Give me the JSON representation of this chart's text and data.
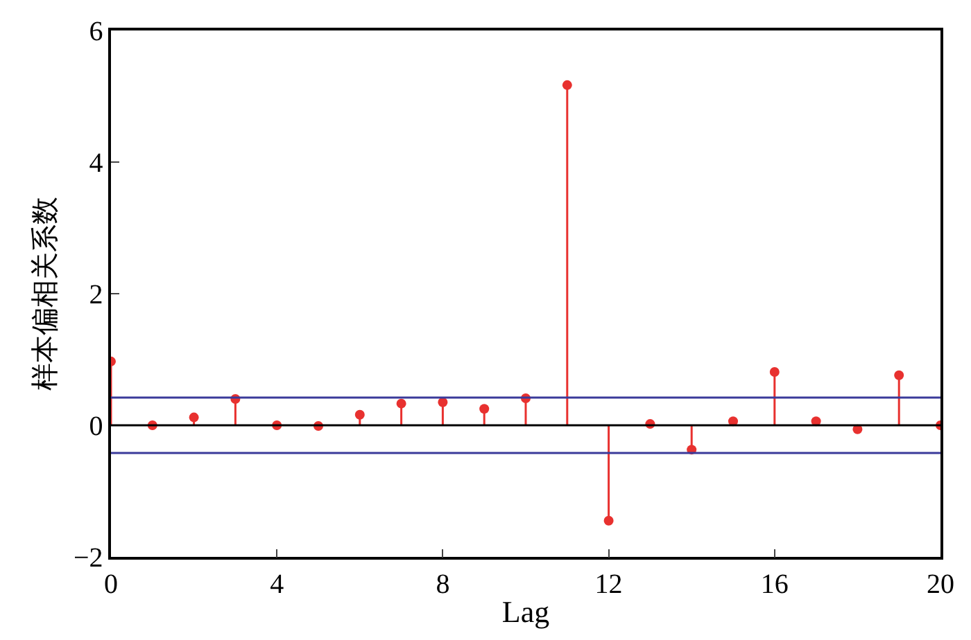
{
  "chart_data": {
    "type": "lollipop",
    "xlabel": "Lag",
    "ylabel": "样本偏相关系数",
    "x": [
      0,
      1,
      2,
      3,
      4,
      5,
      6,
      7,
      8,
      9,
      10,
      11,
      12,
      13,
      14,
      15,
      16,
      17,
      18,
      19,
      20
    ],
    "series": [
      {
        "color": "#e8312f",
        "values": [
          0.97,
          0.0,
          0.12,
          0.4,
          0.0,
          -0.01,
          0.16,
          0.33,
          0.35,
          0.25,
          0.41,
          5.17,
          -1.45,
          0.02,
          -0.37,
          0.06,
          0.81,
          0.06,
          -0.06,
          0.76,
          0.0
        ]
      }
    ],
    "xlim": [
      0,
      20
    ],
    "xticks": [
      0,
      4,
      8,
      12,
      16,
      20
    ],
    "ylim": [
      -2,
      6
    ],
    "yticks": [
      -2,
      0,
      2,
      4,
      6
    ],
    "ref_lines": [
      {
        "axis": "y",
        "value": 0.42,
        "color": "#3a3a9a"
      },
      {
        "axis": "y",
        "value": -0.42,
        "color": "#3a3a9a"
      },
      {
        "axis": "y",
        "value": 0,
        "color": "#000000"
      }
    ],
    "marker": "circle"
  }
}
